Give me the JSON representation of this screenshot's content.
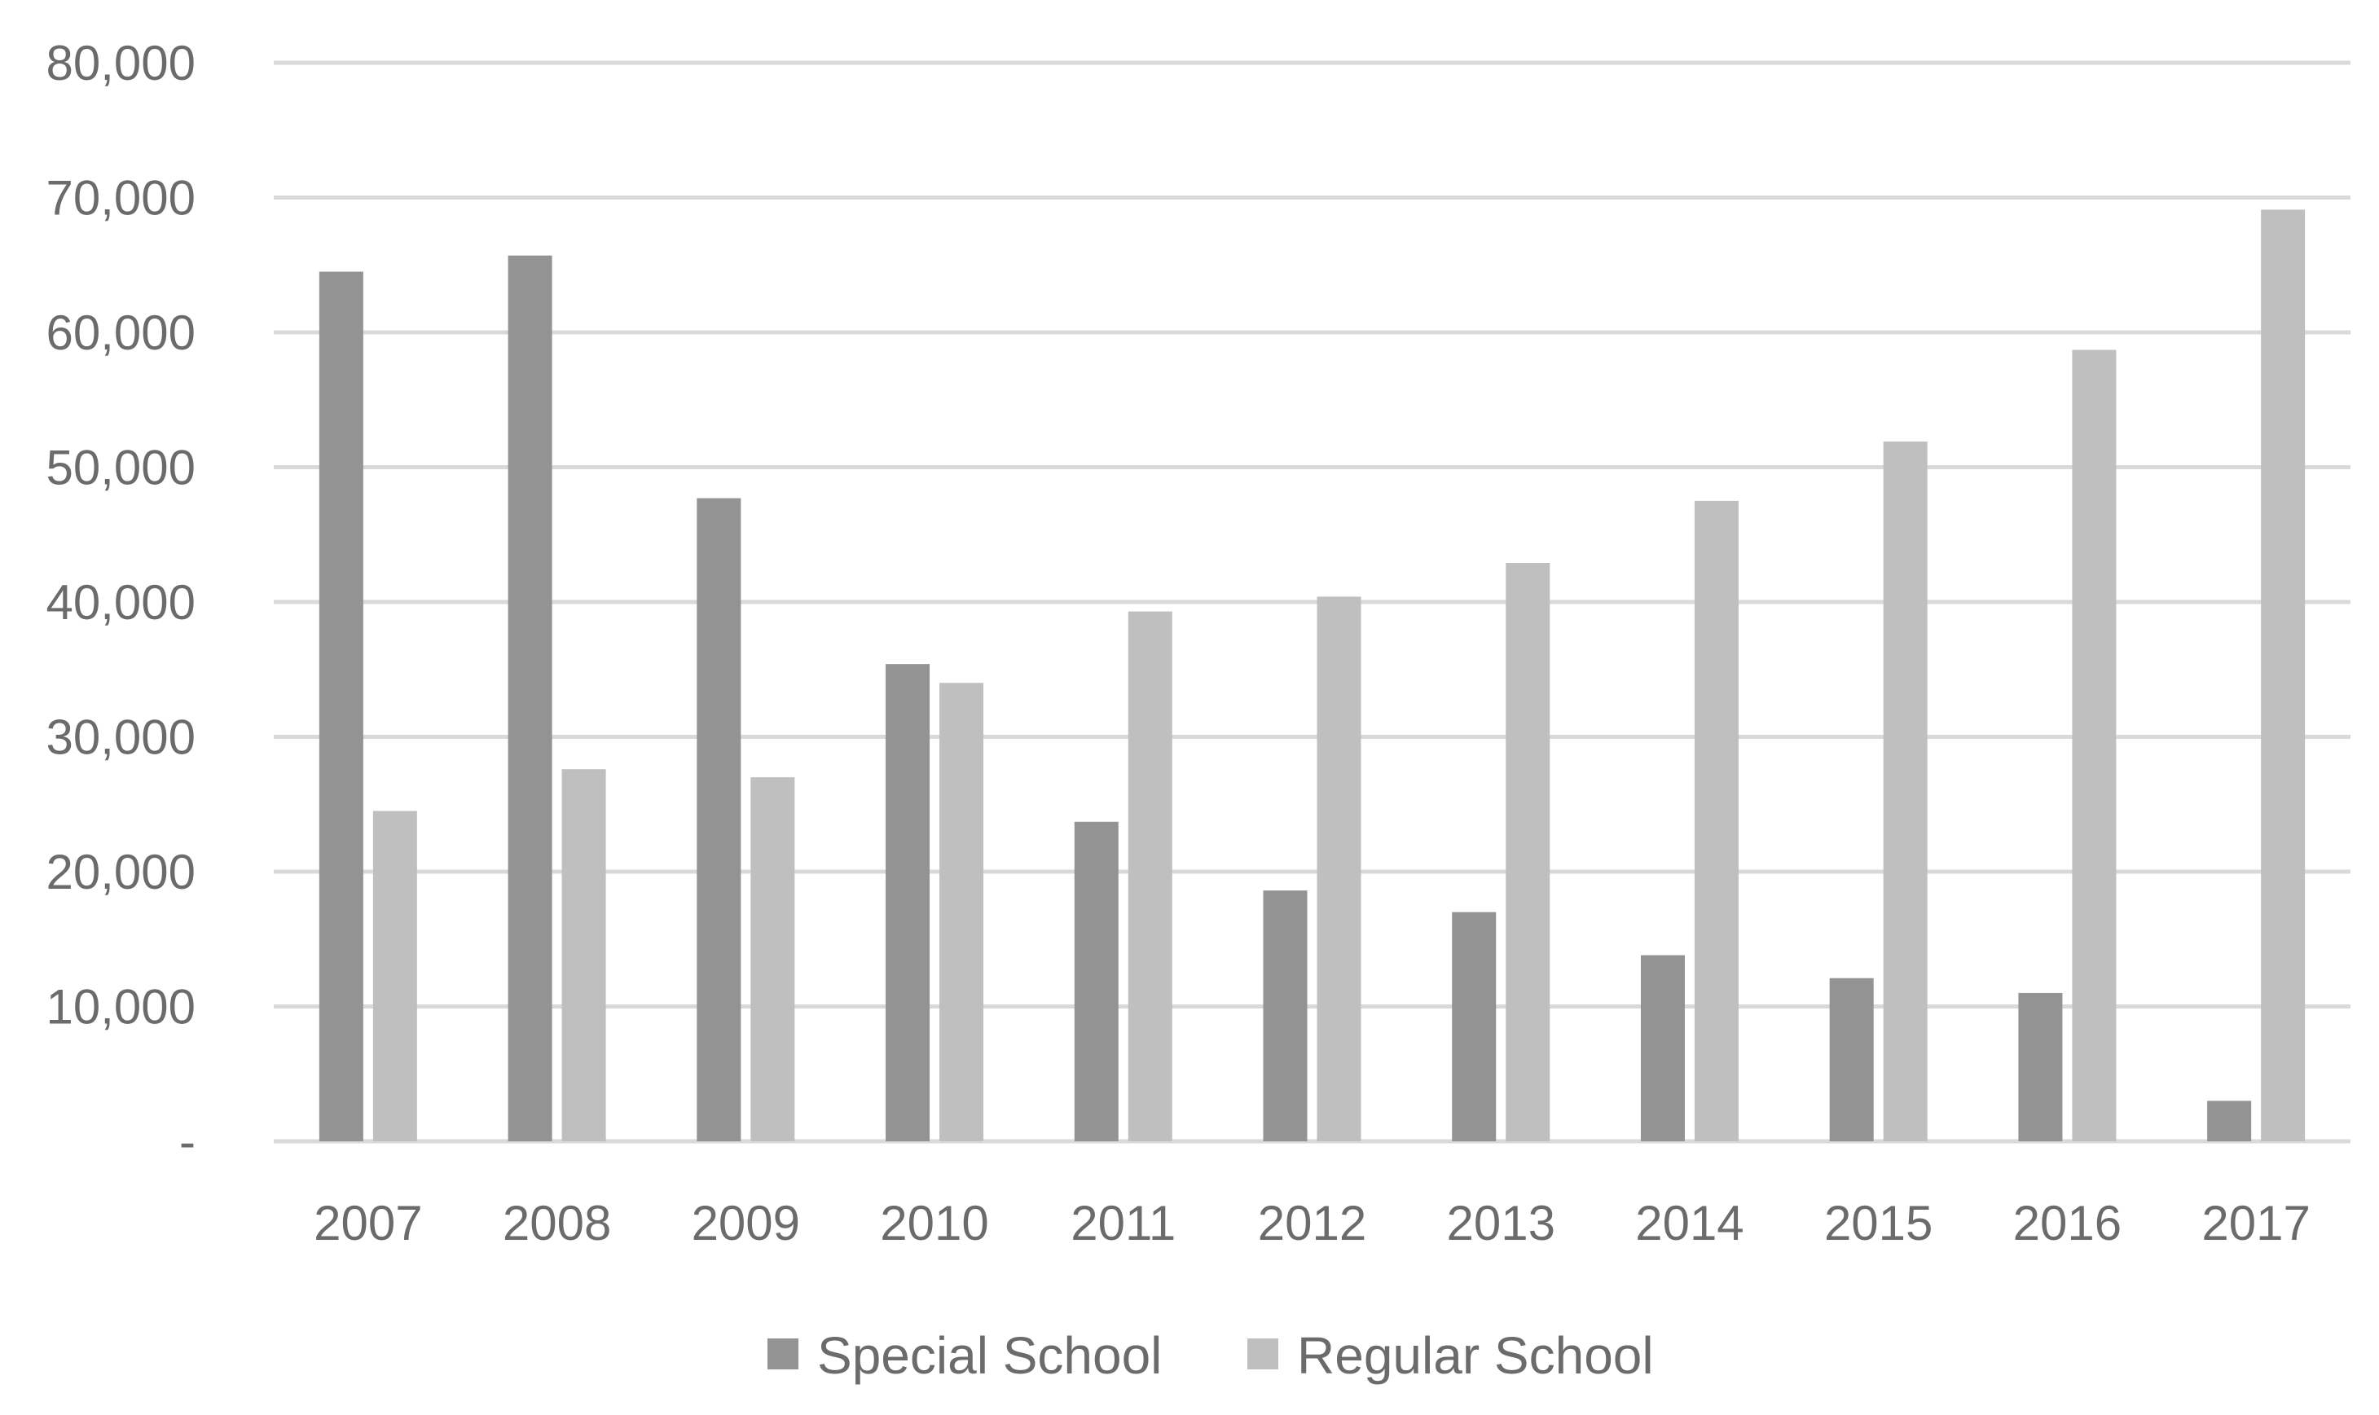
{
  "chart_data": {
    "type": "bar",
    "title": "",
    "xlabel": "",
    "ylabel": "",
    "categories": [
      "2007",
      "2008",
      "2009",
      "2010",
      "2011",
      "2012",
      "2013",
      "2014",
      "2015",
      "2016",
      "2017"
    ],
    "series": [
      {
        "name": "Special School",
        "color": "#939393",
        "values": [
          64500,
          65700,
          47700,
          35400,
          23700,
          18600,
          17000,
          13800,
          12100,
          11000,
          3000
        ]
      },
      {
        "name": "Regular School",
        "color": "#bfbfbf",
        "values": [
          24500,
          27600,
          27000,
          34000,
          39300,
          40400,
          42900,
          47500,
          51900,
          58700,
          69100
        ]
      }
    ],
    "ylim": [
      0,
      80000
    ],
    "yticks": [
      0,
      10000,
      20000,
      30000,
      40000,
      50000,
      60000,
      70000,
      80000
    ],
    "ytick_labels": [
      "-",
      "10,000",
      "20,000",
      "30,000",
      "40,000",
      "50,000",
      "60,000",
      "70,000",
      "80,000"
    ],
    "grid": true,
    "legend_position": "bottom-center"
  }
}
